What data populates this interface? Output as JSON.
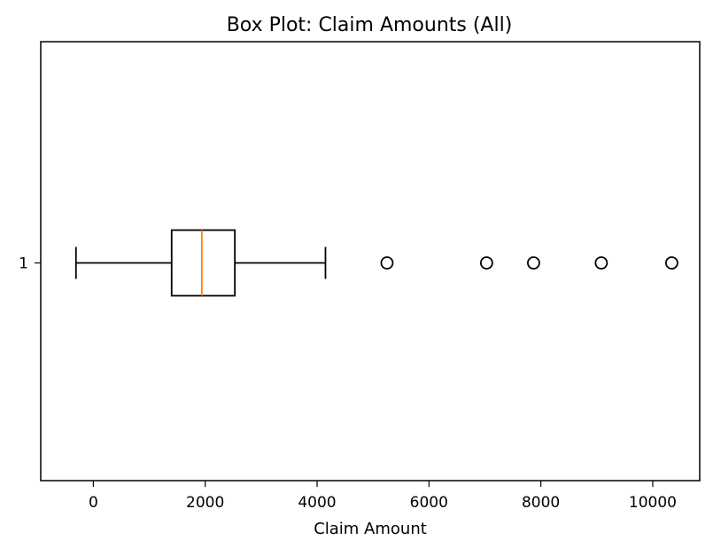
{
  "chart_data": {
    "type": "boxplot",
    "orientation": "horizontal",
    "title": "Box Plot: Claim Amounts (All)",
    "xlabel": "Claim Amount",
    "ylabel": "",
    "xlim": [
      -940,
      10840
    ],
    "x_ticks": [
      0,
      2000,
      4000,
      6000,
      8000,
      10000
    ],
    "x_tick_labels": [
      "0",
      "2000",
      "4000",
      "6000",
      "8000",
      "10000"
    ],
    "y_tick_labels": [
      "1"
    ],
    "grid": false,
    "series": [
      {
        "category": "1",
        "whisker_low": -310,
        "q1": 1400,
        "median": 1940,
        "q3": 2530,
        "whisker_high": 4150,
        "outliers": [
          5250,
          7030,
          7870,
          9080,
          10340
        ]
      }
    ],
    "colors": {
      "box": "#000000",
      "median": "#ff7f0e",
      "outlier_edge": "#000000"
    }
  }
}
